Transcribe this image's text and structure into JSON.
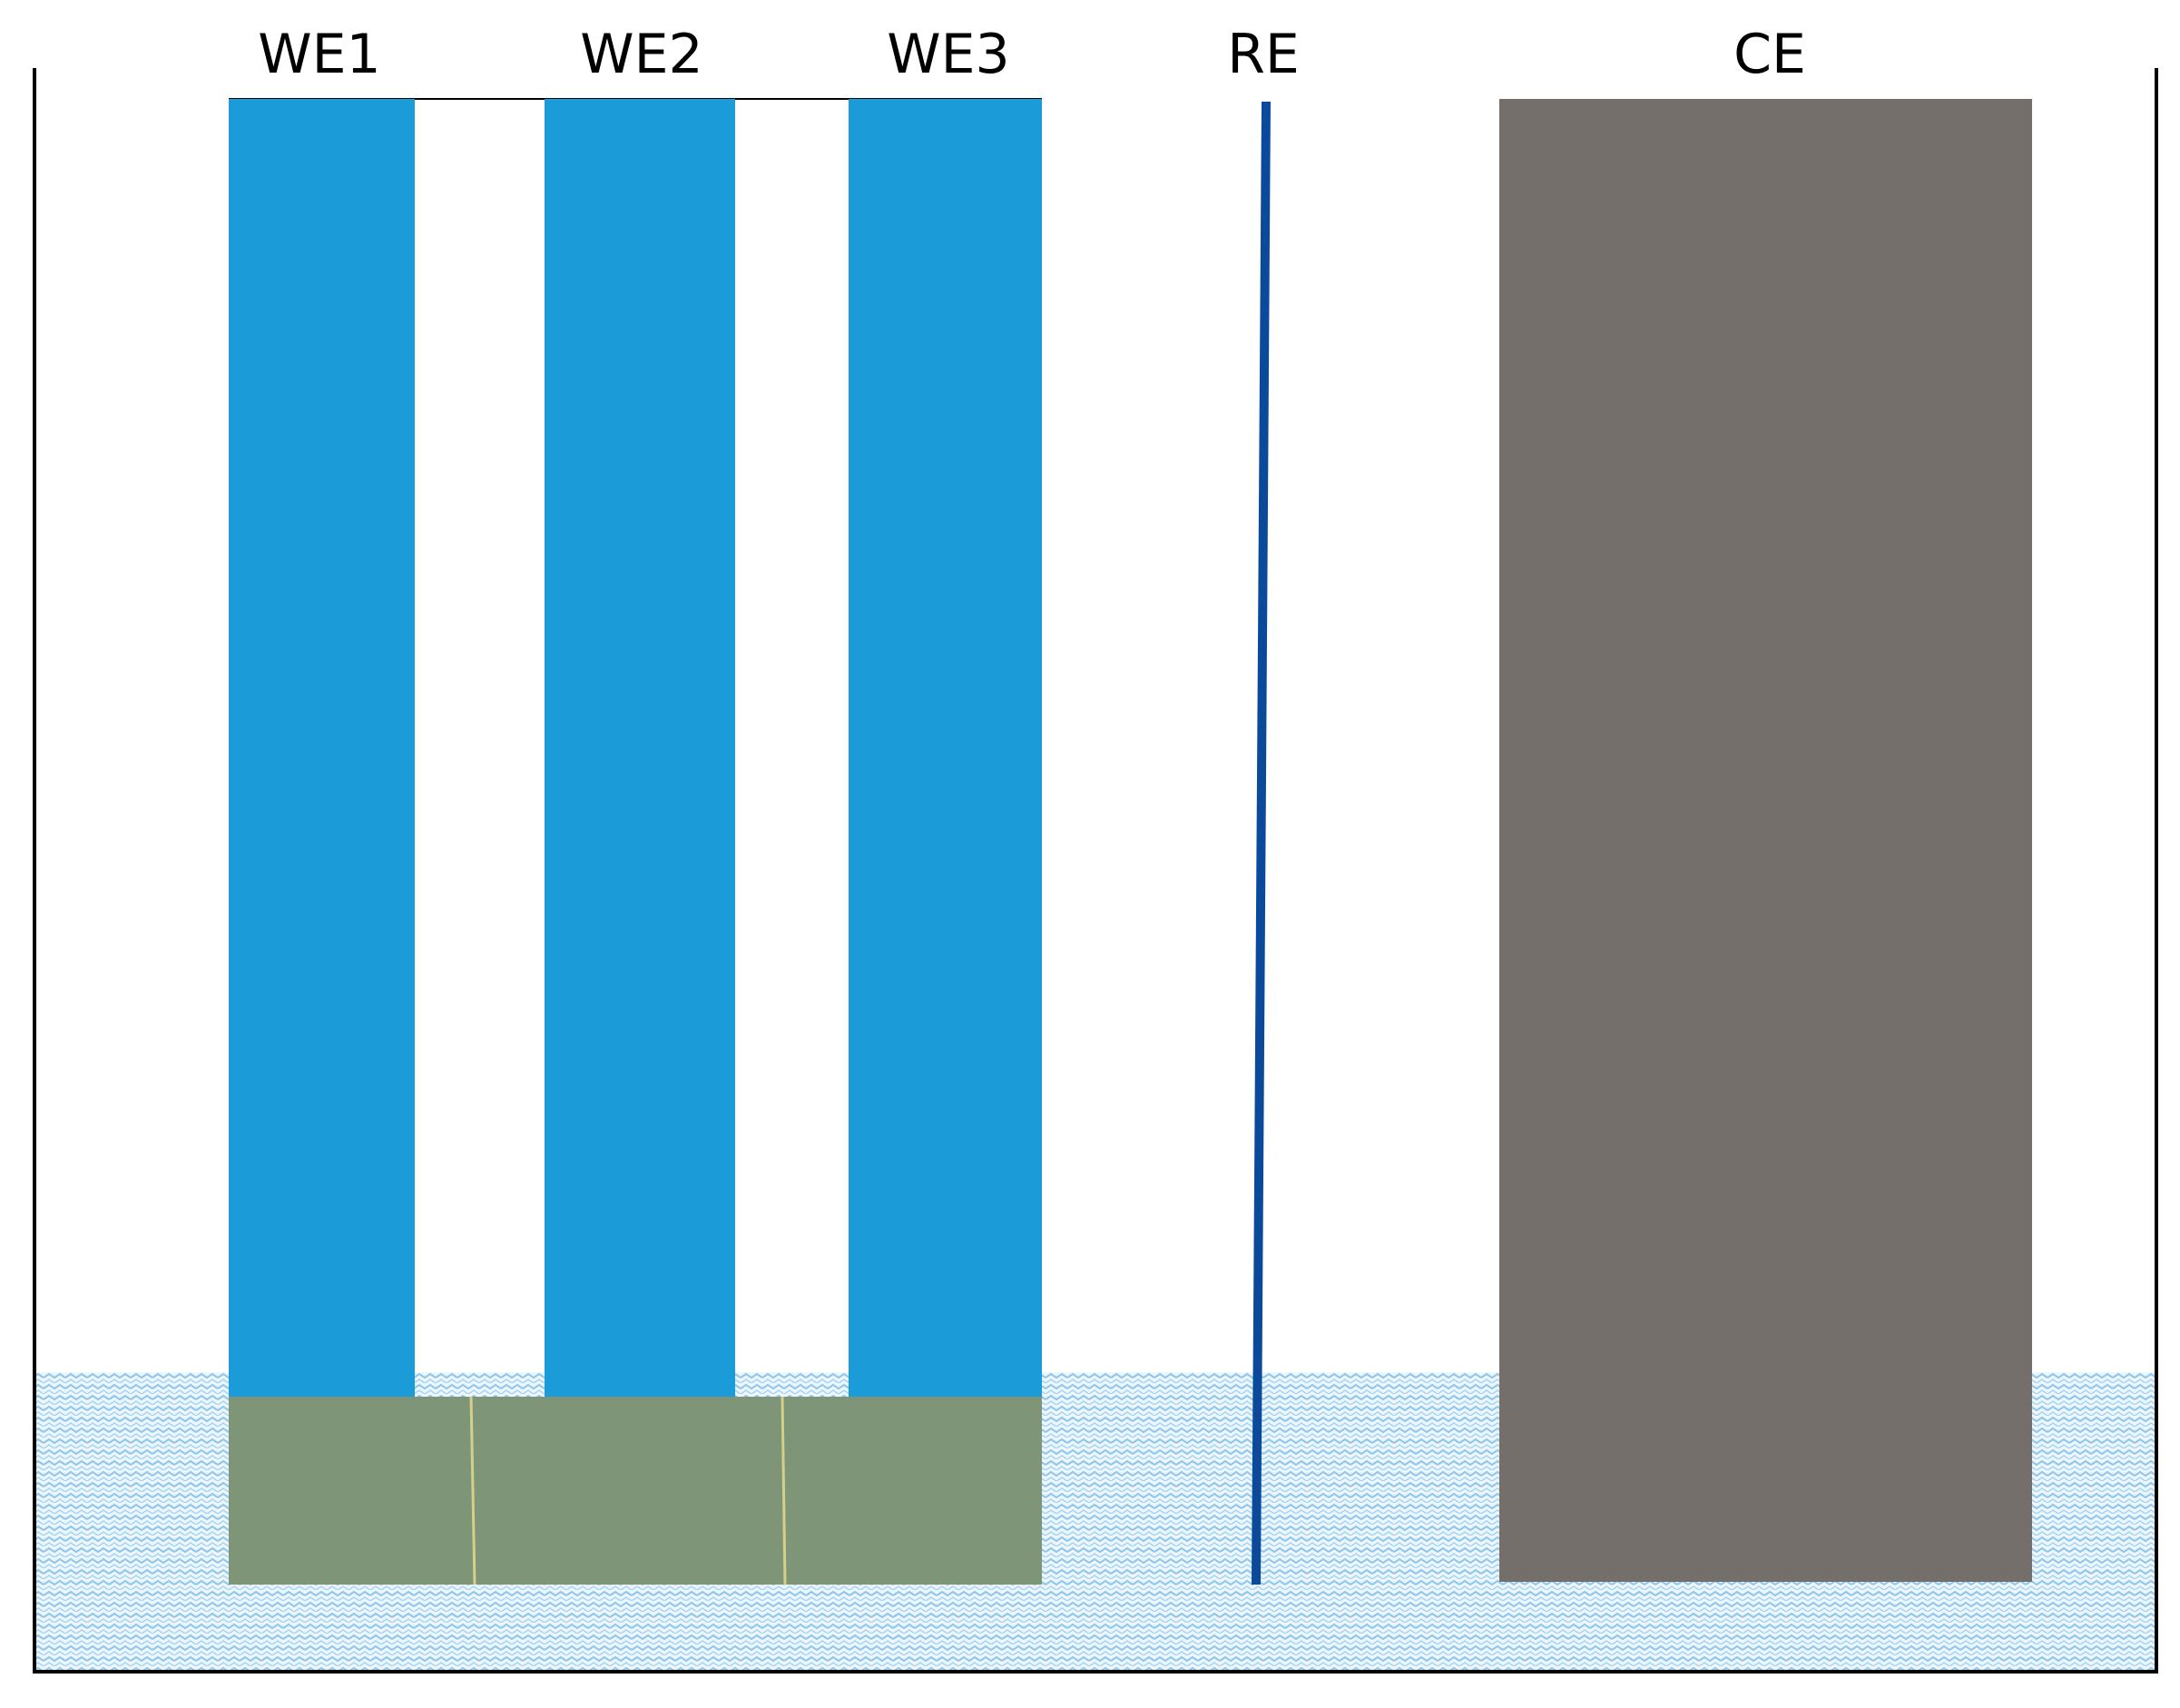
{
  "labels": {
    "we1": "WE1",
    "we2": "WE2",
    "we3": "WE3",
    "re": "RE",
    "ce": "CE"
  },
  "colors": {
    "working_electrode": "#1b9bd7",
    "coated_section": "#7f9577",
    "coating_divider": "#d6cf8a",
    "reference_electrode": "#0b4a9b",
    "counter_electrode": "#756f6c",
    "electrolyte_wave": "#8fc7ec",
    "electrolyte_background": "#ecf6fc",
    "container_wall": "#000000"
  },
  "icons": {
    "electrolyte": "wavy-liquid-pattern"
  }
}
